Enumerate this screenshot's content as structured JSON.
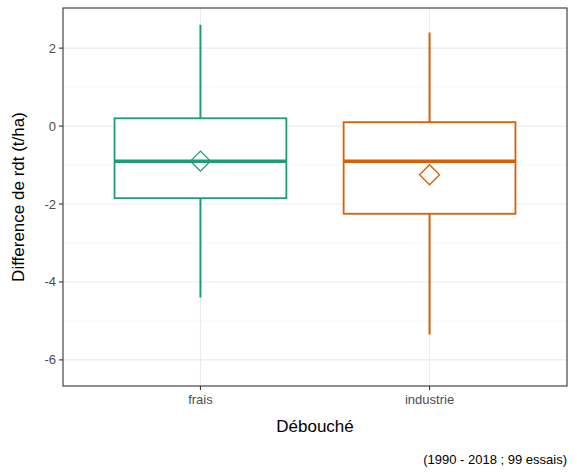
{
  "chart_data": {
    "type": "box",
    "x_label": "Débouché",
    "y_label": "Difference de rdt (t/ha)",
    "caption": "(1990 - 2018 ; 99 essais)",
    "categories": [
      "frais",
      "industrie"
    ],
    "colors": [
      "#1b9e77",
      "#d95f02"
    ],
    "boxes": [
      {
        "min": -4.4,
        "q1": -1.85,
        "median": -0.9,
        "q3": 0.2,
        "max": 2.6,
        "mean": -0.9
      },
      {
        "min": -5.35,
        "q1": -2.25,
        "median": -0.9,
        "q3": 0.1,
        "max": 2.4,
        "mean": -1.25
      }
    ],
    "marker": "diamond",
    "ylim": [
      -6.67,
      3.03
    ],
    "yticks": [
      -6,
      -4,
      -2,
      0,
      2
    ],
    "grid": true
  }
}
